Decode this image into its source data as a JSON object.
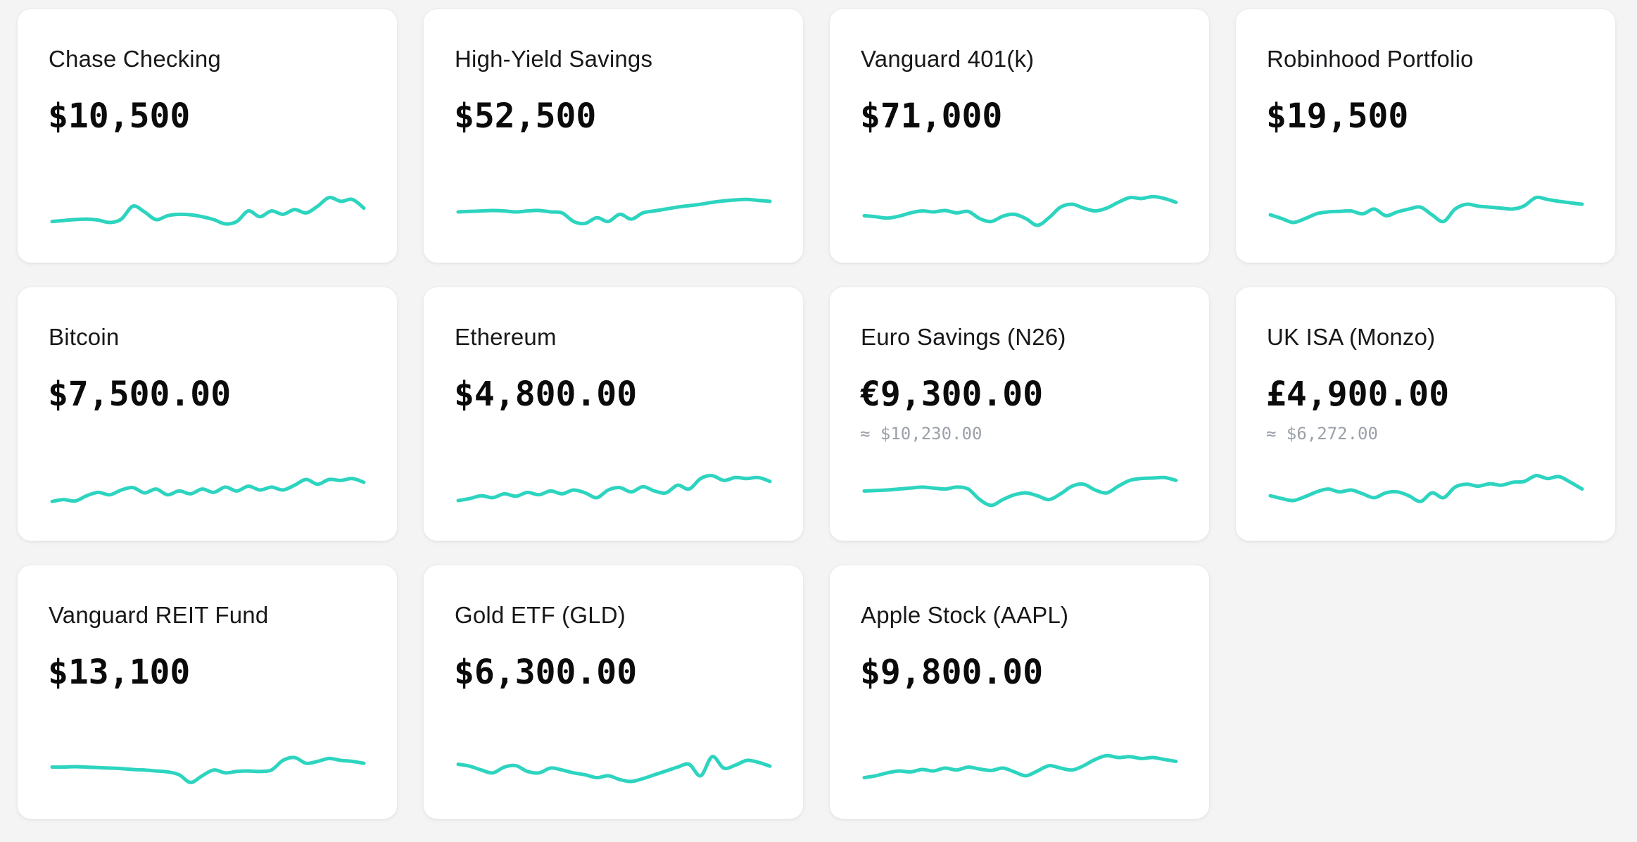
{
  "page": {
    "background": "#f4f4f5"
  },
  "theme": {
    "accent": "#2dd4bf",
    "card_background": "#ffffff",
    "title_color": "#17181a",
    "amount_color": "#0b0b0c",
    "approx_color": "#9ba0a8"
  },
  "accounts": [
    {
      "name": "Chase Checking",
      "balance": "$10,500",
      "sparkline": [
        0.3,
        0.32,
        0.34,
        0.35,
        0.33,
        0.28,
        0.35,
        0.62,
        0.5,
        0.34,
        0.42,
        0.45,
        0.44,
        0.4,
        0.34,
        0.25,
        0.3,
        0.52,
        0.4,
        0.52,
        0.45,
        0.55,
        0.48,
        0.62,
        0.8,
        0.72,
        0.76,
        0.58
      ]
    },
    {
      "name": "High-Yield Savings",
      "balance": "$52,500",
      "sparkline": [
        0.5,
        0.51,
        0.52,
        0.53,
        0.52,
        0.5,
        0.52,
        0.53,
        0.5,
        0.48,
        0.3,
        0.26,
        0.38,
        0.3,
        0.45,
        0.35,
        0.48,
        0.52,
        0.56,
        0.6,
        0.63,
        0.66,
        0.7,
        0.73,
        0.75,
        0.76,
        0.74,
        0.72
      ]
    },
    {
      "name": "Vanguard 401(k)",
      "balance": "$71,000",
      "sparkline": [
        0.42,
        0.4,
        0.37,
        0.41,
        0.48,
        0.52,
        0.5,
        0.53,
        0.48,
        0.51,
        0.36,
        0.3,
        0.41,
        0.45,
        0.36,
        0.22,
        0.38,
        0.6,
        0.66,
        0.58,
        0.52,
        0.58,
        0.7,
        0.8,
        0.78,
        0.82,
        0.78,
        0.7
      ]
    },
    {
      "name": "Robinhood Portfolio",
      "balance": "$19,500",
      "sparkline": [
        0.44,
        0.36,
        0.28,
        0.36,
        0.46,
        0.5,
        0.51,
        0.52,
        0.46,
        0.56,
        0.42,
        0.5,
        0.56,
        0.6,
        0.44,
        0.3,
        0.56,
        0.66,
        0.62,
        0.6,
        0.58,
        0.56,
        0.63,
        0.8,
        0.76,
        0.72,
        0.69,
        0.66
      ]
    },
    {
      "name": "Bitcoin",
      "balance": "$7,500.00",
      "sparkline": [
        0.26,
        0.3,
        0.27,
        0.38,
        0.45,
        0.4,
        0.5,
        0.55,
        0.44,
        0.52,
        0.4,
        0.48,
        0.42,
        0.52,
        0.45,
        0.56,
        0.48,
        0.58,
        0.5,
        0.56,
        0.5,
        0.6,
        0.72,
        0.62,
        0.72,
        0.7,
        0.74,
        0.66
      ]
    },
    {
      "name": "Ethereum",
      "balance": "$4,800.00",
      "sparkline": [
        0.28,
        0.32,
        0.38,
        0.34,
        0.42,
        0.37,
        0.45,
        0.4,
        0.48,
        0.42,
        0.5,
        0.44,
        0.34,
        0.5,
        0.55,
        0.46,
        0.57,
        0.48,
        0.44,
        0.6,
        0.52,
        0.74,
        0.8,
        0.7,
        0.76,
        0.74,
        0.76,
        0.68
      ]
    },
    {
      "name": "Euro Savings (N26)",
      "balance": "€9,300.00",
      "approx": "≈ $10,230.00",
      "sparkline": [
        0.48,
        0.49,
        0.5,
        0.52,
        0.54,
        0.56,
        0.54,
        0.52,
        0.56,
        0.52,
        0.3,
        0.18,
        0.3,
        0.4,
        0.44,
        0.38,
        0.3,
        0.42,
        0.58,
        0.62,
        0.5,
        0.44,
        0.58,
        0.7,
        0.74,
        0.75,
        0.76,
        0.7
      ]
    },
    {
      "name": "UK ISA (Monzo)",
      "balance": "£4,900.00",
      "approx": "≈ $6,272.00",
      "sparkline": [
        0.38,
        0.32,
        0.28,
        0.36,
        0.46,
        0.52,
        0.46,
        0.5,
        0.42,
        0.34,
        0.44,
        0.46,
        0.38,
        0.26,
        0.44,
        0.34,
        0.56,
        0.62,
        0.58,
        0.63,
        0.6,
        0.66,
        0.68,
        0.8,
        0.74,
        0.78,
        0.66,
        0.52
      ]
    },
    {
      "name": "Vanguard REIT Fund",
      "balance": "$13,100",
      "sparkline": [
        0.52,
        0.52,
        0.53,
        0.52,
        0.51,
        0.5,
        0.49,
        0.47,
        0.46,
        0.44,
        0.42,
        0.36,
        0.2,
        0.34,
        0.46,
        0.4,
        0.43,
        0.44,
        0.43,
        0.46,
        0.66,
        0.72,
        0.6,
        0.64,
        0.7,
        0.66,
        0.64,
        0.6
      ]
    },
    {
      "name": "Gold ETF (GLD)",
      "balance": "$6,300.00",
      "sparkline": [
        0.58,
        0.54,
        0.46,
        0.4,
        0.52,
        0.55,
        0.43,
        0.4,
        0.5,
        0.46,
        0.4,
        0.36,
        0.3,
        0.34,
        0.26,
        0.22,
        0.28,
        0.36,
        0.44,
        0.52,
        0.58,
        0.34,
        0.74,
        0.5,
        0.56,
        0.66,
        0.62,
        0.54
      ]
    },
    {
      "name": "Apple Stock (AAPL)",
      "balance": "$9,800.00",
      "sparkline": [
        0.3,
        0.34,
        0.4,
        0.44,
        0.42,
        0.47,
        0.44,
        0.5,
        0.46,
        0.52,
        0.48,
        0.45,
        0.5,
        0.42,
        0.34,
        0.44,
        0.55,
        0.5,
        0.46,
        0.55,
        0.68,
        0.76,
        0.72,
        0.74,
        0.7,
        0.72,
        0.68,
        0.64
      ]
    }
  ]
}
